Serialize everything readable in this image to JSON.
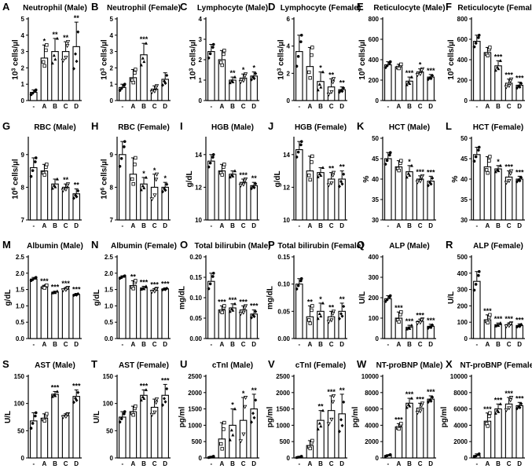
{
  "chart_data": [
    {
      "letter": "A",
      "title": "Neutrophil (Male)",
      "type": "bar",
      "categories": [
        "-",
        "A",
        "B",
        "C",
        "D"
      ],
      "ylabel": "10^3 cells/µl",
      "ylim": [
        0,
        5
      ],
      "yticks": [
        "0",
        "1",
        "2",
        "3",
        "4",
        "5"
      ],
      "values": [
        0.5,
        2.6,
        3.0,
        3.0,
        3.3
      ],
      "errors": [
        0.15,
        0.8,
        0.8,
        0.6,
        1.5
      ],
      "sig": [
        "",
        "*",
        "**",
        "**",
        "**"
      ]
    },
    {
      "letter": "B",
      "title": "Neutrophil (Female)",
      "type": "bar",
      "categories": [
        "-",
        "A",
        "B",
        "C",
        "D"
      ],
      "ylabel": "10^3 cells/µl",
      "ylim": [
        0,
        5
      ],
      "yticks": [
        "0",
        "1",
        "2",
        "3",
        "4",
        "5"
      ],
      "values": [
        0.8,
        1.4,
        2.8,
        0.7,
        1.3
      ],
      "errors": [
        0.2,
        0.5,
        0.7,
        0.2,
        0.4
      ],
      "sig": [
        "",
        "",
        "***",
        "",
        ""
      ]
    },
    {
      "letter": "C",
      "title": "Lymphocyte (Male)",
      "type": "bar",
      "categories": [
        "-",
        "A",
        "B",
        "C",
        "D"
      ],
      "ylabel": "10^3 cells/µl",
      "ylim": [
        0,
        4
      ],
      "yticks": [
        "0",
        "1",
        "2",
        "3",
        "4"
      ],
      "values": [
        2.4,
        2.0,
        1.0,
        1.1,
        1.2
      ],
      "errors": [
        0.35,
        0.45,
        0.15,
        0.2,
        0.2
      ],
      "sig": [
        "",
        "",
        "**",
        "*",
        "*"
      ]
    },
    {
      "letter": "D",
      "title": "Lymphocyte (Female)",
      "type": "bar",
      "categories": [
        "-",
        "A",
        "B",
        "C",
        "D"
      ],
      "ylabel": "10^3 cells/µl",
      "ylim": [
        0,
        6
      ],
      "yticks": [
        "0",
        "2",
        "4",
        "6"
      ],
      "values": [
        3.6,
        2.5,
        1.4,
        1.0,
        0.8
      ],
      "errors": [
        1.2,
        1.4,
        0.7,
        0.6,
        0.2
      ],
      "sig": [
        "",
        "",
        "*",
        "**",
        "**"
      ]
    },
    {
      "letter": "E",
      "title": "Reticulocyte (Male)",
      "type": "bar",
      "categories": [
        "-",
        "A",
        "B",
        "C",
        "D"
      ],
      "ylabel": "10^9 cells/µl",
      "ylim": [
        0,
        800
      ],
      "yticks": [
        "0",
        "200",
        "400",
        "600",
        "800"
      ],
      "values": [
        350,
        330,
        190,
        280,
        230
      ],
      "errors": [
        30,
        25,
        40,
        30,
        25
      ],
      "sig": [
        "",
        "",
        "***",
        "*",
        "***"
      ]
    },
    {
      "letter": "F",
      "title": "Reticulocyte (Female)",
      "type": "bar",
      "categories": [
        "-",
        "A",
        "B",
        "C",
        "D"
      ],
      "ylabel": "10^9 cells/µl",
      "ylim": [
        0,
        800
      ],
      "yticks": [
        "0",
        "200",
        "400",
        "600",
        "800"
      ],
      "values": [
        580,
        470,
        340,
        170,
        150
      ],
      "errors": [
        60,
        50,
        50,
        40,
        30
      ],
      "sig": [
        "",
        "",
        "***",
        "***",
        "***"
      ]
    },
    {
      "letter": "G",
      "title": "RBC (Male)",
      "type": "bar",
      "categories": [
        "-",
        "A",
        "B",
        "C",
        "D"
      ],
      "ylabel": "10^6 cells/µl",
      "ylim": [
        7,
        9.5
      ],
      "yticks": [
        "7",
        "8",
        "9"
      ],
      "values": [
        8.6,
        8.5,
        8.1,
        8.0,
        7.8
      ],
      "errors": [
        0.3,
        0.2,
        0.15,
        0.1,
        0.15
      ],
      "sig": [
        "",
        "",
        "",
        "**",
        "**"
      ]
    },
    {
      "letter": "H",
      "title": "RBC (Female)",
      "type": "bar",
      "categories": [
        "-",
        "A",
        "B",
        "C",
        "D"
      ],
      "ylabel": "10^6 cells/µl",
      "ylim": [
        7,
        9.5
      ],
      "yticks": [
        "7",
        "8",
        "9"
      ],
      "values": [
        9.0,
        8.4,
        8.1,
        8.0,
        8.0
      ],
      "errors": [
        0.4,
        0.5,
        0.2,
        0.4,
        0.15
      ],
      "sig": [
        "",
        "",
        "*",
        "*",
        "*"
      ]
    },
    {
      "letter": "I",
      "title": "HGB (Male)",
      "type": "bar",
      "categories": [
        "-",
        "A",
        "B",
        "C",
        "D"
      ],
      "ylabel": "g/dL",
      "ylim": [
        10,
        15
      ],
      "yticks": [
        "10",
        "12",
        "14"
      ],
      "values": [
        13.6,
        13.0,
        12.8,
        12.3,
        12.1
      ],
      "errors": [
        0.4,
        0.4,
        0.2,
        0.2,
        0.2
      ],
      "sig": [
        "",
        "",
        "",
        "***",
        "**"
      ]
    },
    {
      "letter": "J",
      "title": "HGB (Female)",
      "type": "bar",
      "categories": [
        "-",
        "A",
        "B",
        "C",
        "D"
      ],
      "ylabel": "g/dL",
      "ylim": [
        10,
        15
      ],
      "yticks": [
        "10",
        "12",
        "14"
      ],
      "values": [
        14.3,
        13.0,
        12.9,
        12.5,
        12.5
      ],
      "errors": [
        0.5,
        0.9,
        0.3,
        0.4,
        0.5
      ],
      "sig": [
        "",
        "",
        "",
        "**",
        "**"
      ]
    },
    {
      "letter": "K",
      "title": "HCT (Male)",
      "type": "bar",
      "categories": [
        "-",
        "A",
        "B",
        "C",
        "D"
      ],
      "ylabel": "%",
      "ylim": [
        30,
        50
      ],
      "yticks": [
        "30",
        "35",
        "40",
        "45",
        "50"
      ],
      "values": [
        45.0,
        43.0,
        41.8,
        40.0,
        39.5
      ],
      "errors": [
        1.5,
        1.5,
        1.5,
        0.8,
        1.2
      ],
      "sig": [
        "",
        "",
        "*",
        "***",
        "***"
      ]
    },
    {
      "letter": "L",
      "title": "HCT (Female)",
      "type": "bar",
      "categories": [
        "-",
        "A",
        "B",
        "C",
        "D"
      ],
      "ylabel": "%",
      "ylim": [
        30,
        50
      ],
      "yticks": [
        "30",
        "35",
        "40",
        "45",
        "50"
      ],
      "values": [
        46.0,
        43.0,
        42.5,
        40.5,
        40.0
      ],
      "errors": [
        1.8,
        2.5,
        0.8,
        1.5,
        0.7
      ],
      "sig": [
        "",
        "",
        "*",
        "***",
        "***"
      ]
    },
    {
      "letter": "M",
      "title": "Albumin (Male)",
      "type": "bar",
      "categories": [
        "-",
        "A",
        "B",
        "C",
        "D"
      ],
      "ylabel": "g/dL",
      "ylim": [
        0,
        2.5
      ],
      "yticks": [
        "0.0",
        "0.5",
        "1.0",
        "1.5",
        "2.0",
        "2.5"
      ],
      "values": [
        1.82,
        1.58,
        1.42,
        1.52,
        1.35
      ],
      "errors": [
        0.05,
        0.05,
        0.03,
        0.04,
        0.03
      ],
      "sig": [
        "",
        "***",
        "***",
        "***",
        "***"
      ]
    },
    {
      "letter": "N",
      "title": "Albumin (Female)",
      "type": "bar",
      "categories": [
        "-",
        "A",
        "B",
        "C",
        "D"
      ],
      "ylabel": "g/dL",
      "ylim": [
        0,
        2.5
      ],
      "yticks": [
        "0.0",
        "0.5",
        "1.0",
        "1.5",
        "2.0",
        "2.5"
      ],
      "values": [
        1.88,
        1.62,
        1.55,
        1.48,
        1.52
      ],
      "errors": [
        0.04,
        0.15,
        0.05,
        0.05,
        0.03
      ],
      "sig": [
        "",
        "**",
        "***",
        "***",
        "***"
      ]
    },
    {
      "letter": "O",
      "title": "Total bilirubin (Male)",
      "type": "bar",
      "categories": [
        "-",
        "A",
        "B",
        "C",
        "D"
      ],
      "ylabel": "mg/dL",
      "ylim": [
        0,
        0.2
      ],
      "yticks": [
        "0.00",
        "0.05",
        "0.10",
        "0.15",
        "0.20"
      ],
      "values": [
        0.14,
        0.07,
        0.075,
        0.07,
        0.06
      ],
      "errors": [
        0.02,
        0.01,
        0.01,
        0.01,
        0.01
      ],
      "sig": [
        "",
        "***",
        "***",
        "***",
        "***"
      ]
    },
    {
      "letter": "P",
      "title": "Total bilirubin (Female)",
      "type": "bar",
      "categories": [
        "-",
        "A",
        "B",
        "C",
        "D"
      ],
      "ylabel": "mg/dL",
      "ylim": [
        0,
        0.15
      ],
      "yticks": [
        "0.00",
        "0.05",
        "0.10",
        "0.15"
      ],
      "values": [
        0.1,
        0.04,
        0.05,
        0.04,
        0.05
      ],
      "errors": [
        0.01,
        0.02,
        0.015,
        0.01,
        0.015
      ],
      "sig": [
        "",
        "**",
        "*",
        "**",
        "**"
      ]
    },
    {
      "letter": "Q",
      "title": "ALP (Male)",
      "type": "bar",
      "categories": [
        "-",
        "A",
        "B",
        "C",
        "D"
      ],
      "ylabel": "U/L",
      "ylim": [
        0,
        400
      ],
      "yticks": [
        "0",
        "100",
        "200",
        "300",
        "400"
      ],
      "values": [
        195,
        100,
        55,
        85,
        60
      ],
      "errors": [
        15,
        30,
        10,
        10,
        10
      ],
      "sig": [
        "",
        "***",
        "***",
        "***",
        "***"
      ]
    },
    {
      "letter": "R",
      "title": "ALP (Female)",
      "type": "bar",
      "categories": [
        "-",
        "A",
        "B",
        "C",
        "D"
      ],
      "ylabel": "U/L",
      "ylim": [
        0,
        500
      ],
      "yticks": [
        "0",
        "100",
        "200",
        "300",
        "400",
        "500"
      ],
      "values": [
        350,
        115,
        85,
        85,
        80
      ],
      "errors": [
        60,
        30,
        10,
        10,
        10
      ],
      "sig": [
        "",
        "***",
        "***",
        "***",
        "***"
      ]
    },
    {
      "letter": "S",
      "title": "AST (Male)",
      "type": "bar",
      "categories": [
        "-",
        "A",
        "B",
        "C",
        "D"
      ],
      "ylabel": "U/L",
      "ylim": [
        0,
        150
      ],
      "yticks": [
        "0",
        "50",
        "100",
        "150"
      ],
      "values": [
        68,
        73,
        117,
        78,
        113
      ],
      "errors": [
        15,
        8,
        5,
        3,
        12
      ],
      "sig": [
        "",
        "",
        "***",
        "",
        "***"
      ]
    },
    {
      "letter": "T",
      "title": "AST (Female)",
      "type": "bar",
      "categories": [
        "-",
        "A",
        "B",
        "C",
        "D"
      ],
      "ylabel": "U/L",
      "ylim": [
        0,
        150
      ],
      "yticks": [
        "0",
        "50",
        "100",
        "150"
      ],
      "values": [
        75,
        85,
        115,
        93,
        115
      ],
      "errors": [
        10,
        10,
        10,
        15,
        20
      ],
      "sig": [
        "",
        "",
        "***",
        "",
        "***"
      ]
    },
    {
      "letter": "U",
      "title": "cTnI (Male)",
      "type": "bar",
      "categories": [
        "-",
        "A",
        "B",
        "C",
        "D"
      ],
      "ylabel": "pg/ml",
      "ylim": [
        0,
        2500
      ],
      "yticks": [
        "0",
        "500",
        "1000",
        "1500",
        "2000",
        "2500"
      ],
      "values": [
        30,
        580,
        1000,
        1150,
        1500
      ],
      "errors": [
        20,
        500,
        500,
        700,
        450
      ],
      "sig": [
        "",
        "",
        "*",
        "*",
        "**"
      ]
    },
    {
      "letter": "V",
      "title": "cTnI (Female)",
      "type": "bar",
      "categories": [
        "-",
        "A",
        "B",
        "C",
        "D"
      ],
      "ylabel": "pg/ml",
      "ylim": [
        0,
        2500
      ],
      "yticks": [
        "0",
        "500",
        "1000",
        "1500",
        "2000",
        "2500"
      ],
      "values": [
        30,
        380,
        1150,
        1450,
        1350
      ],
      "errors": [
        20,
        150,
        300,
        450,
        600
      ],
      "sig": [
        "",
        "",
        "**",
        "***",
        "**"
      ]
    },
    {
      "letter": "W",
      "title": "NT-proBNP (Male)",
      "type": "bar",
      "categories": [
        "-",
        "A",
        "B",
        "C",
        "D"
      ],
      "ylabel": "pg/ml",
      "ylim": [
        0,
        10000
      ],
      "yticks": [
        "0",
        "2000",
        "4000",
        "6000",
        "8000",
        "10000"
      ],
      "values": [
        300,
        3800,
        6700,
        6100,
        7200
      ],
      "errors": [
        100,
        400,
        600,
        600,
        400
      ],
      "sig": [
        "",
        "***",
        "***",
        "***",
        "***"
      ]
    },
    {
      "letter": "X",
      "title": "NT-proBNP (Female)",
      "type": "bar",
      "categories": [
        "-",
        "A",
        "B",
        "C",
        "D"
      ],
      "ylabel": "pg/ml",
      "ylim": [
        0,
        10000
      ],
      "yticks": [
        "0",
        "2000",
        "4000",
        "6000",
        "8000",
        "10000"
      ],
      "values": [
        300,
        4500,
        6000,
        6600,
        6400
      ],
      "errors": [
        200,
        1000,
        600,
        800,
        400
      ],
      "sig": [
        "",
        "***",
        "***",
        "***",
        "***"
      ]
    }
  ]
}
